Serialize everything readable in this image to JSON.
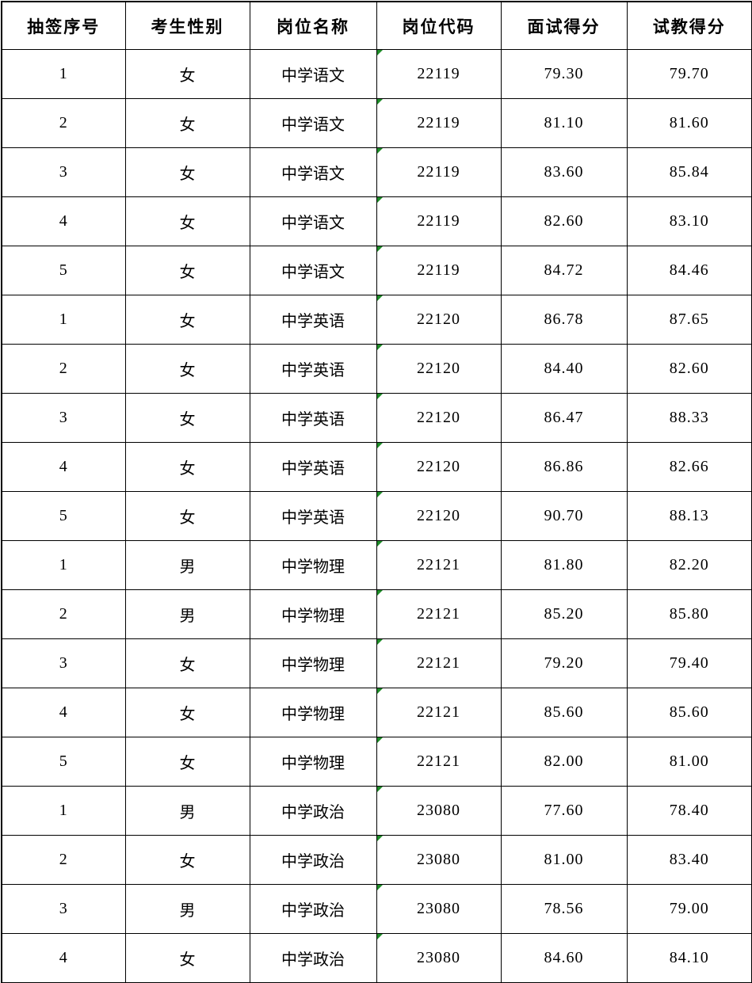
{
  "table": {
    "headers": [
      "抽签序号",
      "考生性别",
      "岗位名称",
      "岗位代码",
      "面试得分",
      "试教得分"
    ],
    "column_keys": [
      "draw-number",
      "gender",
      "position-name",
      "position-code",
      "interview-score",
      "teaching-score"
    ],
    "error_indicator_column_index": 3,
    "rows": [
      [
        "1",
        "女",
        "中学语文",
        "22119",
        "79.30",
        "79.70"
      ],
      [
        "2",
        "女",
        "中学语文",
        "22119",
        "81.10",
        "81.60"
      ],
      [
        "3",
        "女",
        "中学语文",
        "22119",
        "83.60",
        "85.84"
      ],
      [
        "4",
        "女",
        "中学语文",
        "22119",
        "82.60",
        "83.10"
      ],
      [
        "5",
        "女",
        "中学语文",
        "22119",
        "84.72",
        "84.46"
      ],
      [
        "1",
        "女",
        "中学英语",
        "22120",
        "86.78",
        "87.65"
      ],
      [
        "2",
        "女",
        "中学英语",
        "22120",
        "84.40",
        "82.60"
      ],
      [
        "3",
        "女",
        "中学英语",
        "22120",
        "86.47",
        "88.33"
      ],
      [
        "4",
        "女",
        "中学英语",
        "22120",
        "86.86",
        "82.66"
      ],
      [
        "5",
        "女",
        "中学英语",
        "22120",
        "90.70",
        "88.13"
      ],
      [
        "1",
        "男",
        "中学物理",
        "22121",
        "81.80",
        "82.20"
      ],
      [
        "2",
        "男",
        "中学物理",
        "22121",
        "85.20",
        "85.80"
      ],
      [
        "3",
        "女",
        "中学物理",
        "22121",
        "79.20",
        "79.40"
      ],
      [
        "4",
        "女",
        "中学物理",
        "22121",
        "85.60",
        "85.60"
      ],
      [
        "5",
        "女",
        "中学物理",
        "22121",
        "82.00",
        "81.00"
      ],
      [
        "1",
        "男",
        "中学政治",
        "23080",
        "77.60",
        "78.40"
      ],
      [
        "2",
        "女",
        "中学政治",
        "23080",
        "81.00",
        "83.40"
      ],
      [
        "3",
        "男",
        "中学政治",
        "23080",
        "78.56",
        "79.00"
      ],
      [
        "4",
        "女",
        "中学政治",
        "23080",
        "84.60",
        "84.10"
      ]
    ]
  },
  "icons": {
    "error_indicator": "number-stored-as-text-triangle"
  },
  "colors": {
    "border": "#000000",
    "background": "#ffffff",
    "text": "#000000",
    "error_indicator_green": "#1e8c28"
  }
}
